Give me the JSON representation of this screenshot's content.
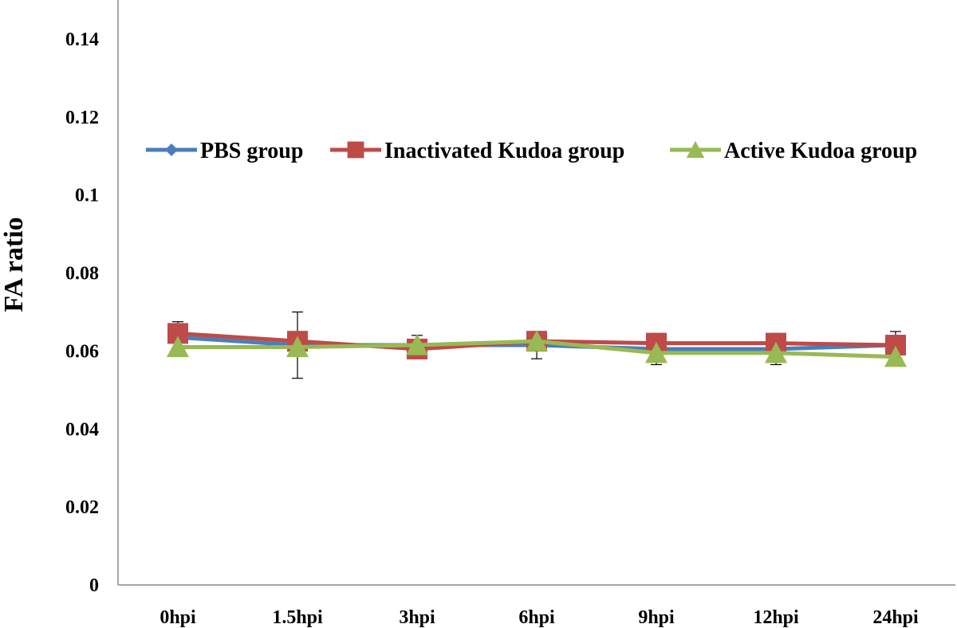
{
  "chart_data": {
    "type": "line",
    "title": "",
    "xlabel": "",
    "ylabel": "FA ratio",
    "ylim": [
      0,
      0.15
    ],
    "yticks": [
      "0",
      "0.02",
      "0.04",
      "0.06",
      "0.08",
      "0.1",
      "0.12",
      "0.14"
    ],
    "categories": [
      "0hpi",
      "1.5hpi",
      "3hpi",
      "6hpi",
      "9hpi",
      "12hpi",
      "24hpi"
    ],
    "grid": false,
    "legend_position": "top",
    "series": [
      {
        "name": "PBS group",
        "color": "#4a7ebb",
        "marker": "diamond",
        "values": [
          0.0635,
          0.0615,
          0.0615,
          0.0615,
          0.0605,
          0.0605,
          0.0615
        ],
        "error": [
          0.004,
          0.0085,
          0.0025,
          0.0035,
          0.004,
          0.004,
          0.0035
        ]
      },
      {
        "name": "Inactivated Kudoa group",
        "color": "#be4b48",
        "marker": "square",
        "values": [
          0.0645,
          0.0625,
          0.0605,
          0.0625,
          0.062,
          0.062,
          0.0615
        ],
        "error": [
          0,
          0,
          0,
          0,
          0,
          0,
          0
        ]
      },
      {
        "name": "Active Kudoa group",
        "color": "#98b954",
        "marker": "triangle",
        "values": [
          0.061,
          0.061,
          0.0615,
          0.0625,
          0.0595,
          0.0595,
          0.0585
        ],
        "error": [
          0,
          0,
          0,
          0,
          0,
          0,
          0
        ]
      }
    ]
  }
}
